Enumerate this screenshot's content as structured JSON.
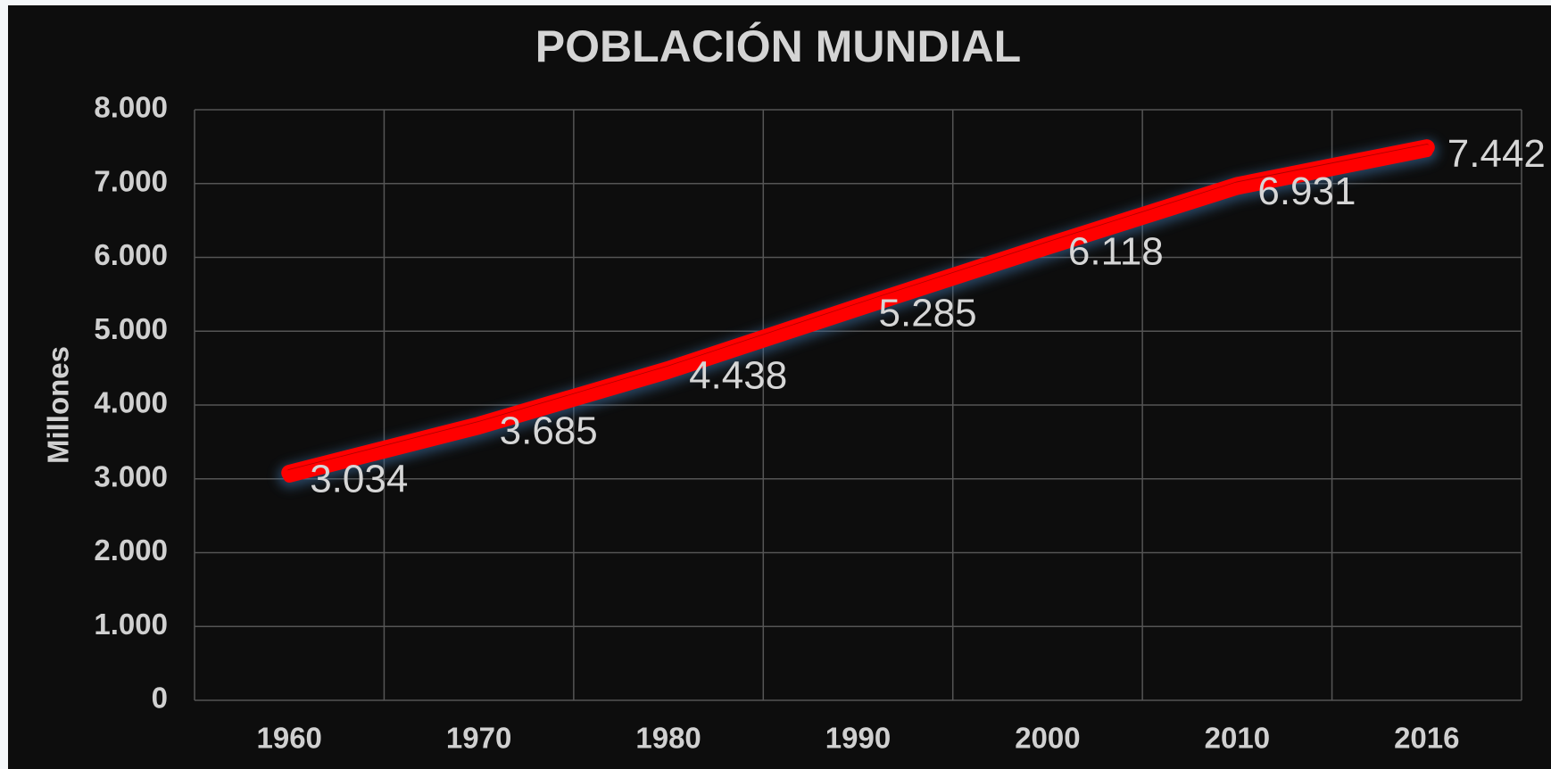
{
  "chart_data": {
    "type": "line",
    "title": "POBLACIÓN MUNDIAL",
    "y_label": "Millones",
    "categories": [
      "1960",
      "1970",
      "1980",
      "1990",
      "2000",
      "2010",
      "2016"
    ],
    "series": [
      {
        "name": "Población",
        "color": "#ff0000",
        "values": [
          3034,
          3685,
          4438,
          5285,
          6118,
          6931,
          7442
        ],
        "value_labels": [
          "3.034",
          "3.685",
          "4.438",
          "5.285",
          "6.118",
          "6.931",
          "7.442"
        ]
      }
    ],
    "ylim": [
      0,
      8000
    ],
    "yticks": [
      0,
      {
        "value": 1000,
        "label": "1.000"
      },
      {
        "value": 2000,
        "label": "2.000"
      },
      {
        "value": 3000,
        "label": "3.000"
      },
      {
        "value": 4000,
        "label": "4.000"
      },
      {
        "value": 5000,
        "label": "5.000"
      },
      {
        "value": 6000,
        "label": "6.000"
      },
      {
        "value": 7000,
        "label": "7.000"
      },
      {
        "value": 8000,
        "label": "8.000"
      }
    ],
    "grid": true
  }
}
